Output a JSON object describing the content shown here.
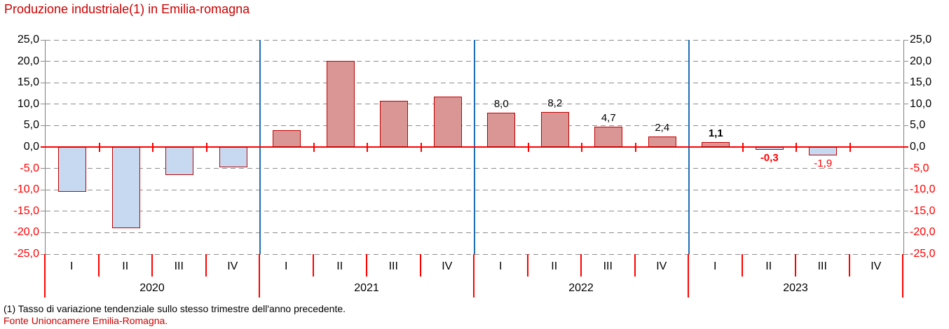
{
  "title": "Produzione industriale(1) in Emilia-romagna",
  "footnote": "(1) Tasso di variazione tendenziale sullo stesso trimestre dell'anno precedente.",
  "source": "Fonte Unioncamere Emilia-Romagna.",
  "colors": {
    "title": "#CC0000",
    "source": "#CC0000",
    "zero_line": "#FF0000",
    "axis_line": "#808080",
    "gridline": "#8C8C8C",
    "year_separator": "#1F6FB4",
    "bar_border": "#C00000",
    "positive_fill": "#D99694",
    "negative_fill": "#C6D9F1",
    "negative_label": "#FF0000"
  },
  "y_axis": {
    "max": 25,
    "min": -25,
    "step": 5,
    "tick_labels": [
      "25,0",
      "20,0",
      "15,0",
      "10,0",
      "5,0",
      "0,0",
      "-5,0",
      "-10,0",
      "-15,0",
      "-20,0",
      "-25,0"
    ]
  },
  "chart_data": {
    "type": "bar",
    "title": "Produzione industriale(1) in Emilia-romagna",
    "ylabel": "",
    "xlabel": "",
    "ylim": [
      -25,
      25
    ],
    "grid": true,
    "legend": false,
    "years": [
      {
        "label": "2020",
        "quarters": [
          "I",
          "II",
          "III",
          "IV"
        ],
        "values": [
          -10.5,
          -19.0,
          -6.5,
          -4.8
        ],
        "labels": [
          null,
          null,
          null,
          null
        ],
        "label_styles": [
          null,
          null,
          null,
          null
        ]
      },
      {
        "label": "2021",
        "quarters": [
          "I",
          "II",
          "III",
          "IV"
        ],
        "values": [
          4.0,
          20.1,
          10.8,
          11.7
        ],
        "labels": [
          null,
          null,
          null,
          null
        ],
        "label_styles": [
          null,
          null,
          null,
          null
        ]
      },
      {
        "label": "2022",
        "quarters": [
          "I",
          "II",
          "III",
          "IV"
        ],
        "values": [
          8.0,
          8.2,
          4.7,
          2.4
        ],
        "labels": [
          "8,0",
          "8,2",
          "4,7",
          "2,4"
        ],
        "label_styles": [
          "black",
          "black",
          "black",
          "black"
        ]
      },
      {
        "label": "2023",
        "quarters": [
          "I",
          "II",
          "III",
          "IV"
        ],
        "values": [
          1.1,
          -0.3,
          -1.9,
          null
        ],
        "labels": [
          "1,1",
          "-0,3",
          "-1,9",
          null
        ],
        "label_styles": [
          "bold-black",
          "bold-red",
          "red",
          null
        ]
      }
    ]
  }
}
